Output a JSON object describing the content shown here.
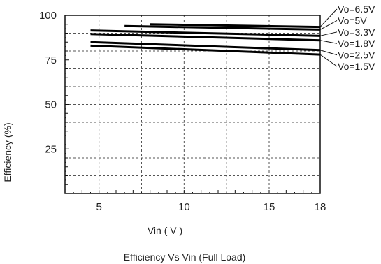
{
  "chart_data": {
    "type": "line",
    "title": "Efficiency  Vs Vin (Full Load)",
    "xlabel": "Vin ( V )",
    "ylabel": "Efficiency (%)",
    "xlim": [
      3,
      18
    ],
    "ylim": [
      0,
      100
    ],
    "x_ticks": [
      5,
      10,
      15,
      18
    ],
    "y_ticks": [
      25,
      50,
      75,
      100
    ],
    "x_grid": [
      5,
      7.5,
      10,
      12.5,
      15,
      18
    ],
    "y_grid": [
      10,
      20,
      30,
      40,
      50,
      60,
      70,
      80,
      90,
      100
    ],
    "grid": true,
    "legend_position": "right",
    "series": [
      {
        "name": "Vo=6.5V",
        "x": [
          8,
          18
        ],
        "y": [
          95,
          93.5
        ]
      },
      {
        "name": "Vo=5V",
        "x": [
          6.5,
          18
        ],
        "y": [
          94,
          92
        ]
      },
      {
        "name": "Vo=3.3V",
        "x": [
          4.5,
          18
        ],
        "y": [
          91.5,
          88.5
        ]
      },
      {
        "name": "Vo=1.8V",
        "x": [
          4.5,
          18
        ],
        "y": [
          89.5,
          86
        ]
      },
      {
        "name": "Vo=2.5V",
        "x": [
          4.5,
          18
        ],
        "y": [
          85,
          80.5
        ]
      },
      {
        "name": "Vo=1.5V",
        "x": [
          4.5,
          18
        ],
        "y": [
          83,
          78
        ]
      }
    ]
  }
}
